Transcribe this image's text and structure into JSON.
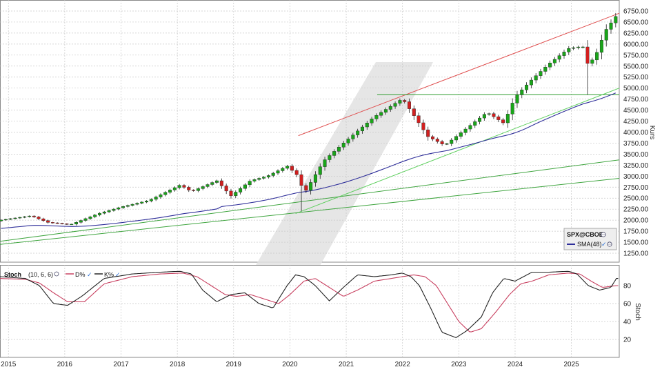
{
  "chart_data": [
    {
      "type": "candlestick",
      "symbol": "SPX@CBOE",
      "ylabel": "Kurs",
      "ylim": [
        1000,
        6850
      ],
      "y_ticks": [
        1250,
        1500,
        1750,
        2000,
        2250,
        2500,
        2750,
        3000,
        3250,
        3500,
        3750,
        4000,
        4250,
        4500,
        4750,
        5000,
        5250,
        5500,
        5750,
        6000,
        6250,
        6500,
        6750
      ],
      "y_tick_labels": [
        "1250.00",
        "1500.00",
        "1750.00",
        "2000.00",
        "2250.00",
        "2500.00",
        "2750.00",
        "3000.00",
        "3250.00",
        "3500.00",
        "3750.00",
        "4000.00",
        "4250.00",
        "4500.00",
        "4750.00",
        "5000.00",
        "5250.00",
        "5500.00",
        "5750.00",
        "6000.00",
        "6250.00",
        "6500.00",
        "6750.00"
      ],
      "x_range": [
        2014.85,
        2025.85
      ],
      "x_labels": [
        "2015",
        "2016",
        "2017",
        "2018",
        "2019",
        "2020",
        "2021",
        "2022",
        "2023",
        "2024",
        "2025"
      ],
      "close_anchors": {
        "t": [
          2014.85,
          2015.4,
          2015.7,
          2016.1,
          2016.6,
          2017.0,
          2017.5,
          2018.05,
          2018.25,
          2018.7,
          2018.95,
          2019.3,
          2019.6,
          2019.95,
          2020.15,
          2020.25,
          2020.6,
          2020.95,
          2021.5,
          2022.0,
          2022.45,
          2022.75,
          2023.0,
          2023.5,
          2023.8,
          2024.0,
          2024.3,
          2024.6,
          2024.95,
          2025.2,
          2025.3,
          2025.45,
          2025.6,
          2025.8
        ],
        "v": [
          2000,
          2100,
          1950,
          1900,
          2150,
          2300,
          2450,
          2800,
          2650,
          2900,
          2550,
          2900,
          3000,
          3230,
          3000,
          2600,
          3350,
          3750,
          4350,
          4760,
          3900,
          3700,
          3950,
          4450,
          4200,
          4800,
          5200,
          5550,
          5900,
          5950,
          5500,
          5800,
          6300,
          6650
        ]
      },
      "series": [
        {
          "name": "SMA(48)",
          "color": "#2f2f9a"
        }
      ],
      "trendlines": [
        {
          "color": "#e05050",
          "from": [
            2020.15,
            3920
          ],
          "to": [
            2025.85,
            6700
          ]
        },
        {
          "color": "#2a9a2a",
          "from": [
            2021.55,
            4850
          ],
          "to": [
            2025.85,
            4850
          ]
        },
        {
          "color": "#5fcf5f",
          "from": [
            2020.1,
            2150
          ],
          "to": [
            2025.85,
            5000
          ]
        },
        {
          "color": "#3fa53f",
          "from": [
            2014.85,
            1520
          ],
          "to": [
            2025.85,
            3370
          ]
        },
        {
          "color": "#3fa53f",
          "from": [
            2014.85,
            1450
          ],
          "to": [
            2025.85,
            2950
          ]
        }
      ]
    },
    {
      "type": "line",
      "title": "Stoch",
      "params": "(10, 6, 6)",
      "ylabel": "Stoch",
      "ylim": [
        0,
        100
      ],
      "y_ticks": [
        20,
        40,
        60,
        80
      ],
      "series": [
        {
          "name": "D%",
          "color": "#c84060"
        },
        {
          "name": "K%",
          "color": "#222222"
        }
      ],
      "k_anchors": {
        "t": [
          2014.85,
          2015.3,
          2015.55,
          2015.8,
          2016.05,
          2016.3,
          2016.7,
          2017.2,
          2017.7,
          2018.05,
          2018.25,
          2018.45,
          2018.7,
          2018.95,
          2019.2,
          2019.45,
          2019.7,
          2019.95,
          2020.1,
          2020.25,
          2020.45,
          2020.7,
          2020.95,
          2021.2,
          2021.5,
          2021.8,
          2022.0,
          2022.15,
          2022.3,
          2022.5,
          2022.7,
          2022.95,
          2023.15,
          2023.4,
          2023.6,
          2023.8,
          2024.0,
          2024.3,
          2024.6,
          2024.95,
          2025.1,
          2025.3,
          2025.5,
          2025.7,
          2025.8
        ],
        "v": [
          90,
          88,
          80,
          60,
          58,
          68,
          88,
          93,
          95,
          96,
          93,
          75,
          62,
          70,
          72,
          60,
          55,
          80,
          92,
          90,
          80,
          63,
          78,
          92,
          90,
          92,
          94,
          90,
          80,
          55,
          28,
          22,
          30,
          45,
          72,
          88,
          85,
          95,
          95,
          96,
          93,
          80,
          75,
          78,
          88
        ]
      },
      "d_anchors": {
        "t": [
          2014.85,
          2015.3,
          2015.55,
          2015.8,
          2016.05,
          2016.35,
          2016.7,
          2017.2,
          2017.7,
          2018.1,
          2018.35,
          2018.6,
          2018.85,
          2019.05,
          2019.3,
          2019.55,
          2019.8,
          2020.0,
          2020.25,
          2020.45,
          2020.7,
          2020.95,
          2021.2,
          2021.5,
          2021.8,
          2022.0,
          2022.2,
          2022.4,
          2022.6,
          2022.8,
          2023.0,
          2023.2,
          2023.4,
          2023.65,
          2023.9,
          2024.1,
          2024.3,
          2024.6,
          2024.95,
          2025.15,
          2025.35,
          2025.55,
          2025.8
        ],
        "v": [
          88,
          87,
          83,
          72,
          62,
          62,
          82,
          90,
          93,
          94,
          90,
          80,
          70,
          68,
          70,
          65,
          60,
          70,
          85,
          88,
          78,
          68,
          75,
          85,
          88,
          90,
          92,
          90,
          80,
          60,
          40,
          28,
          32,
          50,
          70,
          82,
          85,
          92,
          94,
          93,
          85,
          78,
          80
        ]
      }
    }
  ]
}
